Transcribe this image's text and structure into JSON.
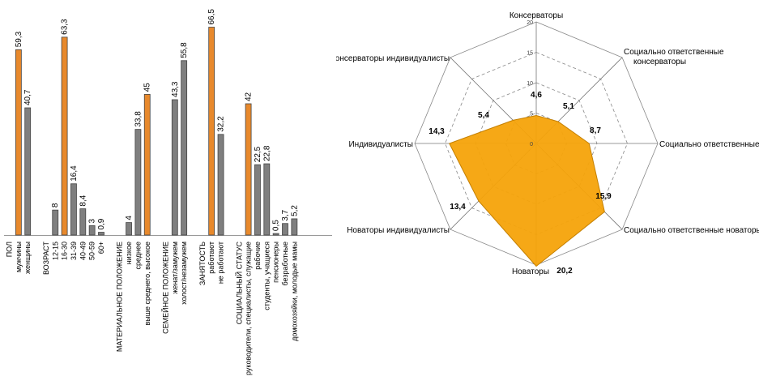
{
  "chart_data": [
    {
      "type": "bar",
      "series_colors": {
        "orange": "#E8892C",
        "gray": "#7f7f7f"
      },
      "categories": [
        {
          "label": "ПОЛ",
          "value": null,
          "color": "orange"
        },
        {
          "label": "мужчины",
          "value": 59.3,
          "color": "orange"
        },
        {
          "label": "женщины",
          "value": 40.7,
          "color": "gray"
        },
        {
          "label": "",
          "value": null,
          "color": "gray"
        },
        {
          "label": "ВОЗРАСТ",
          "value": null,
          "color": "gray"
        },
        {
          "label": "12-15",
          "value": 8,
          "color": "gray"
        },
        {
          "label": "16-30",
          "value": 63.3,
          "color": "orange"
        },
        {
          "label": "31-39",
          "value": 16.4,
          "color": "gray"
        },
        {
          "label": "40-49",
          "value": 8.4,
          "color": "gray"
        },
        {
          "label": "50-59",
          "value": 3,
          "color": "gray"
        },
        {
          "label": "60+",
          "value": 0.9,
          "color": "gray"
        },
        {
          "label": "",
          "value": null,
          "color": "gray"
        },
        {
          "label": "МАТЕРИАЛЬНОЕ ПОЛОЖЕНИЕ",
          "value": null,
          "color": "gray"
        },
        {
          "label": "низкое",
          "value": 4,
          "color": "gray"
        },
        {
          "label": "среднее",
          "value": 33.8,
          "color": "gray"
        },
        {
          "label": "выше среднего, высокое",
          "value": 45,
          "color": "orange"
        },
        {
          "label": "",
          "value": null,
          "color": "gray"
        },
        {
          "label": "СЕМЕЙНОЕ ПОЛОЖЕНИЕ",
          "value": null,
          "color": "gray"
        },
        {
          "label": "женат/замужем",
          "value": 43.3,
          "color": "gray"
        },
        {
          "label": "холост/незамужем",
          "value": 55.8,
          "color": "gray"
        },
        {
          "label": "",
          "value": null,
          "color": "gray"
        },
        {
          "label": "ЗАНЯТОСТЬ",
          "value": null,
          "color": "gray"
        },
        {
          "label": "работают",
          "value": 66.5,
          "color": "orange"
        },
        {
          "label": "не работают",
          "value": 32.2,
          "color": "gray"
        },
        {
          "label": "",
          "value": null,
          "color": "gray"
        },
        {
          "label": "СОЦИАЛЬНЫЙ СТАТУС",
          "value": null,
          "color": "gray"
        },
        {
          "label": "руководители, специалисты, служащие",
          "value": 42,
          "color": "orange"
        },
        {
          "label": "рабочие",
          "value": 22.5,
          "color": "gray"
        },
        {
          "label": "студенты, учащиеся",
          "value": 22.8,
          "color": "gray"
        },
        {
          "label": "пенсионеры",
          "value": 0.5,
          "color": "gray"
        },
        {
          "label": "безработные",
          "value": 3.7,
          "color": "gray"
        },
        {
          "label": "домохозяйки, молодые мамы",
          "value": 5.2,
          "color": "gray"
        }
      ],
      "value_labels": {
        "мужчины": "59,3",
        "женщины": "40,7",
        "12-15": "8",
        "16-30": "63,3",
        "31-39": "16,4",
        "40-49": "8,4",
        "50-59": "3",
        "60+": "0,9",
        "низкое": "4",
        "среднее": "33,8",
        "выше среднего, высокое": "45",
        "женат/замужем": "43,3",
        "холост/незамужем": "55,8",
        "работают": "66,5",
        "не работают": "32,2",
        "руководители, специалисты, служащие": "42",
        "рабочие": "22,5",
        "студенты, учащиеся": "22,8",
        "пенсионеры": "0,5",
        "безработные": "3,7",
        "домохозяйки, молодые мамы": "5,2"
      },
      "ylim": [
        0,
        70
      ],
      "grid": false
    },
    {
      "type": "radar",
      "fill_color": "#F5A30A",
      "axes": [
        {
          "label": "Консерваторы",
          "value": 4.6,
          "value_label": "4,6"
        },
        {
          "label": "Социально ответственные консерваторы",
          "value": 5.1,
          "value_label": "5,1"
        },
        {
          "label": "Социально ответственные",
          "value": 8.7,
          "value_label": "8,7"
        },
        {
          "label": "Социально ответственные новаторы",
          "value": 15.9,
          "value_label": "15,9"
        },
        {
          "label": "Новаторы",
          "value": 20.2,
          "value_label": "20,2"
        },
        {
          "label": "Новаторы индивидуалисты",
          "value": 13.4,
          "value_label": "13,4"
        },
        {
          "label": "Индивидуалисты",
          "value": 14.3,
          "value_label": "14,3"
        },
        {
          "label": "Консерваторы индивидуалисты",
          "value": 5.4,
          "value_label": "5,4"
        }
      ],
      "rlim": [
        0,
        20
      ],
      "ticks": [
        "0",
        "5",
        "10",
        "15",
        "20"
      ]
    }
  ]
}
